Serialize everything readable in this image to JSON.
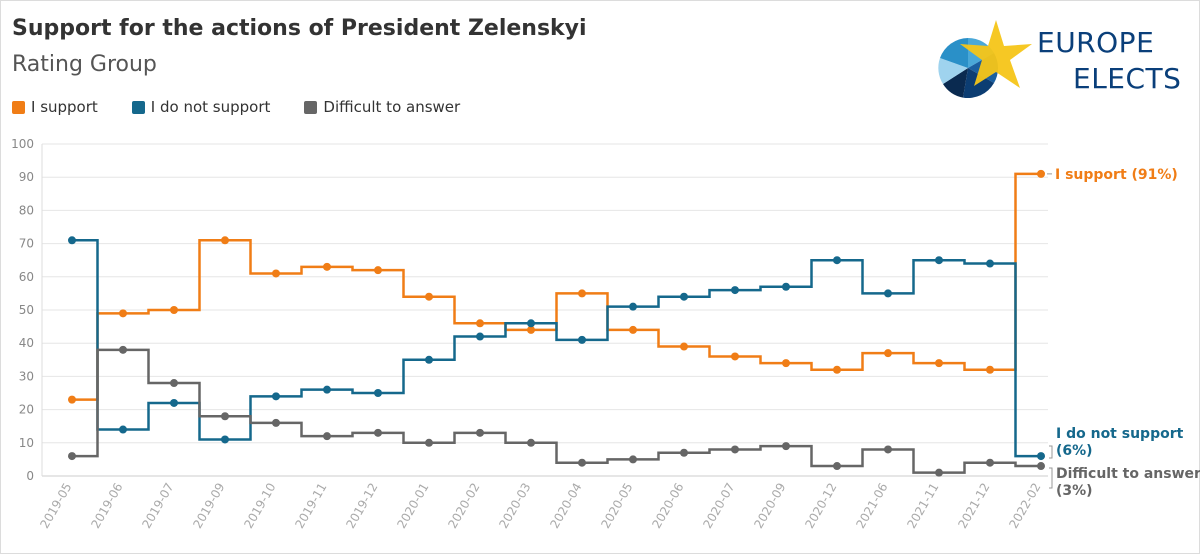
{
  "header": {
    "title": "Support for the actions of President Zelenskyi",
    "subtitle": "Rating Group"
  },
  "logo": {
    "line1": "EUROPE",
    "line2": "ELECTS"
  },
  "colors": {
    "support": "#f07d16",
    "not_support": "#15688c",
    "difficult": "#666666"
  },
  "chart_data": {
    "type": "line",
    "step": true,
    "x": [
      "2019-05",
      "2019-06",
      "2019-07",
      "2019-09",
      "2019-10",
      "2019-11",
      "2019-12",
      "2020-01",
      "2020-02",
      "2020-03",
      "2020-04",
      "2020-05",
      "2020-06",
      "2020-07",
      "2020-09",
      "2020-12",
      "2021-06",
      "2021-11",
      "2021-12",
      "2022-02"
    ],
    "series": [
      {
        "name": "I support",
        "color": "#f07d16",
        "values": [
          23,
          49,
          50,
          71,
          61,
          63,
          62,
          54,
          46,
          44,
          55,
          44,
          39,
          36,
          34,
          32,
          37,
          34,
          32,
          91
        ],
        "end_label": "I support (91%)"
      },
      {
        "name": "I do not support",
        "color": "#15688c",
        "values": [
          71,
          14,
          22,
          11,
          24,
          26,
          25,
          35,
          42,
          46,
          41,
          51,
          54,
          56,
          57,
          65,
          55,
          65,
          64,
          6
        ],
        "end_label_line1": "I do not support",
        "end_label_line2": "(6%)"
      },
      {
        "name": "Difficult to answer",
        "color": "#666666",
        "values": [
          6,
          38,
          28,
          18,
          16,
          12,
          13,
          10,
          13,
          10,
          4,
          5,
          7,
          8,
          9,
          3,
          8,
          1,
          4,
          3
        ],
        "end_label_line1": "Difficult to answer",
        "end_label_line2": "(3%)"
      }
    ],
    "ylim": [
      0,
      100
    ],
    "yticks": [
      0,
      10,
      20,
      30,
      40,
      50,
      60,
      70,
      80,
      90,
      100
    ],
    "grid": true,
    "legend_position": "top-left"
  }
}
